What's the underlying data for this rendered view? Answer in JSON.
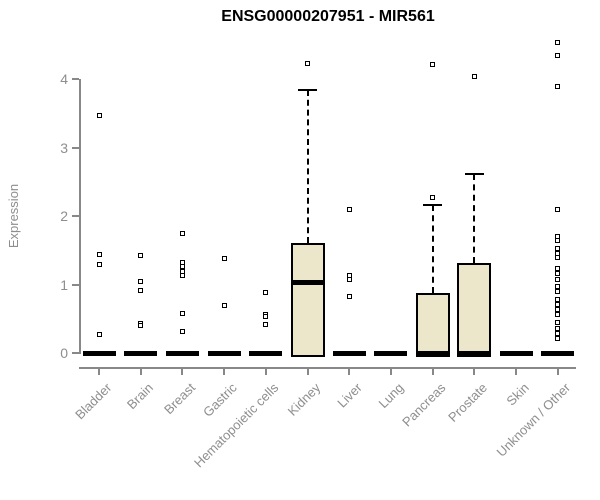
{
  "chart_data": {
    "type": "boxplot",
    "title": "ENSG00000207951 - MIR561",
    "ylabel": "Expression",
    "xlabel": "",
    "ylim": [
      0,
      4.6
    ],
    "yticks": [
      0,
      1,
      2,
      3,
      4
    ],
    "grid": false,
    "legend": false,
    "colors": {
      "box_fill": "#ece7cb",
      "box_border": "#000000",
      "axis": "#888888",
      "tick_labels": "#8e8e8e",
      "title": "#000000",
      "marker": "#000000"
    },
    "categories": [
      "Bladder",
      "Brain",
      "Breast",
      "Gastric",
      "Hematopoietic cells",
      "Kidney",
      "Liver",
      "Lung",
      "Pancreas",
      "Prostate",
      "Skin",
      "Unknown / Other"
    ],
    "series": [
      {
        "category": "Bladder",
        "box": null,
        "zero_bar": true,
        "points": [
          3.48,
          1.44,
          1.29,
          0.27
        ]
      },
      {
        "category": "Brain",
        "box": null,
        "zero_bar": true,
        "points": [
          1.43,
          1.04,
          0.92,
          0.43,
          0.4
        ]
      },
      {
        "category": "Breast",
        "box": null,
        "zero_bar": true,
        "points": [
          1.75,
          1.32,
          1.26,
          1.19,
          1.13,
          0.58,
          0.31
        ]
      },
      {
        "category": "Gastric",
        "box": null,
        "zero_bar": true,
        "points": [
          1.38,
          0.69
        ]
      },
      {
        "category": "Hematopoietic cells",
        "box": null,
        "zero_bar": true,
        "points": [
          0.89,
          0.57,
          0.53,
          0.42
        ]
      },
      {
        "category": "Kidney",
        "box": {
          "q1": 0,
          "median": 1.03,
          "q3": 1.61,
          "whisker_high": 3.85
        },
        "zero_bar": false,
        "points": [
          4.23
        ]
      },
      {
        "category": "Liver",
        "box": null,
        "zero_bar": true,
        "points": [
          2.1,
          1.13,
          1.07,
          0.82
        ]
      },
      {
        "category": "Lung",
        "box": null,
        "zero_bar": true,
        "points": []
      },
      {
        "category": "Pancreas",
        "box": {
          "q1": 0,
          "median": 0,
          "q3": 0.88,
          "whisker_high": 2.17
        },
        "zero_bar": true,
        "points": [
          4.22,
          2.28
        ]
      },
      {
        "category": "Prostate",
        "box": {
          "q1": 0,
          "median": 0,
          "q3": 1.32,
          "whisker_high": 2.62
        },
        "zero_bar": true,
        "points": [
          4.04
        ]
      },
      {
        "category": "Skin",
        "box": null,
        "zero_bar": true,
        "points": []
      },
      {
        "category": "Unknown / Other",
        "box": null,
        "zero_bar": true,
        "points": [
          4.54,
          4.35,
          3.89,
          2.1,
          1.71,
          1.64,
          1.53,
          1.46,
          1.39,
          1.24,
          1.16,
          1.08,
          0.98,
          0.9,
          0.78,
          0.71,
          0.64,
          0.56,
          0.45,
          0.36,
          0.28,
          0.22
        ]
      }
    ]
  }
}
